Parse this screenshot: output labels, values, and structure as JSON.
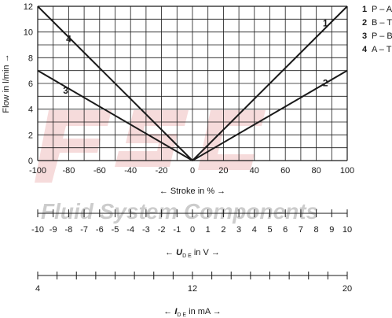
{
  "chart_data": {
    "type": "line",
    "ylabel": "Flow in l/min →",
    "xlabel": "←  Stroke in %  →",
    "xlim": [
      -100,
      100
    ],
    "ylim": [
      0,
      12
    ],
    "grid": true,
    "x_ticks": [
      "-100",
      "-80",
      "-60",
      "-40",
      "-20",
      "0",
      "20",
      "40",
      "60",
      "80",
      "100"
    ],
    "y_ticks": [
      "0",
      "2",
      "4",
      "6",
      "8",
      "10",
      "12"
    ],
    "series": [
      {
        "name": "P – A",
        "number": "1",
        "x": [
          0,
          100
        ],
        "y": [
          0,
          12
        ]
      },
      {
        "name": "B – T",
        "number": "2",
        "x": [
          0,
          100
        ],
        "y": [
          0,
          7
        ]
      },
      {
        "name": "P – B",
        "number": "3",
        "x": [
          -100,
          0
        ],
        "y": [
          7,
          0
        ]
      },
      {
        "name": "A – T",
        "number": "4",
        "x": [
          -100,
          0
        ],
        "y": [
          12,
          0
        ]
      }
    ],
    "legend_position": "top-right",
    "voltage_scale": {
      "tick_labels": [
        "-10",
        "-9",
        "-8",
        "-7",
        "-6",
        "-5",
        "-4",
        "-3",
        "-2",
        "-1",
        "0",
        "1",
        "2",
        "3",
        "4",
        "5",
        "6",
        "7",
        "8",
        "9",
        "10"
      ],
      "label_prefix": "←  ",
      "label_var": "U",
      "label_sub": "D E",
      "label_suffix": " in V →"
    },
    "current_scale": {
      "tick_labels": [
        "4",
        "12",
        "20"
      ],
      "minor_divisions": 16,
      "label_prefix": "←  ",
      "label_var": "I",
      "label_sub": "D E",
      "label_suffix": " in mA →"
    }
  },
  "watermark": {
    "logo_text": "FSC",
    "text": "Fluid System Components",
    "color": "#e3a3a3"
  }
}
